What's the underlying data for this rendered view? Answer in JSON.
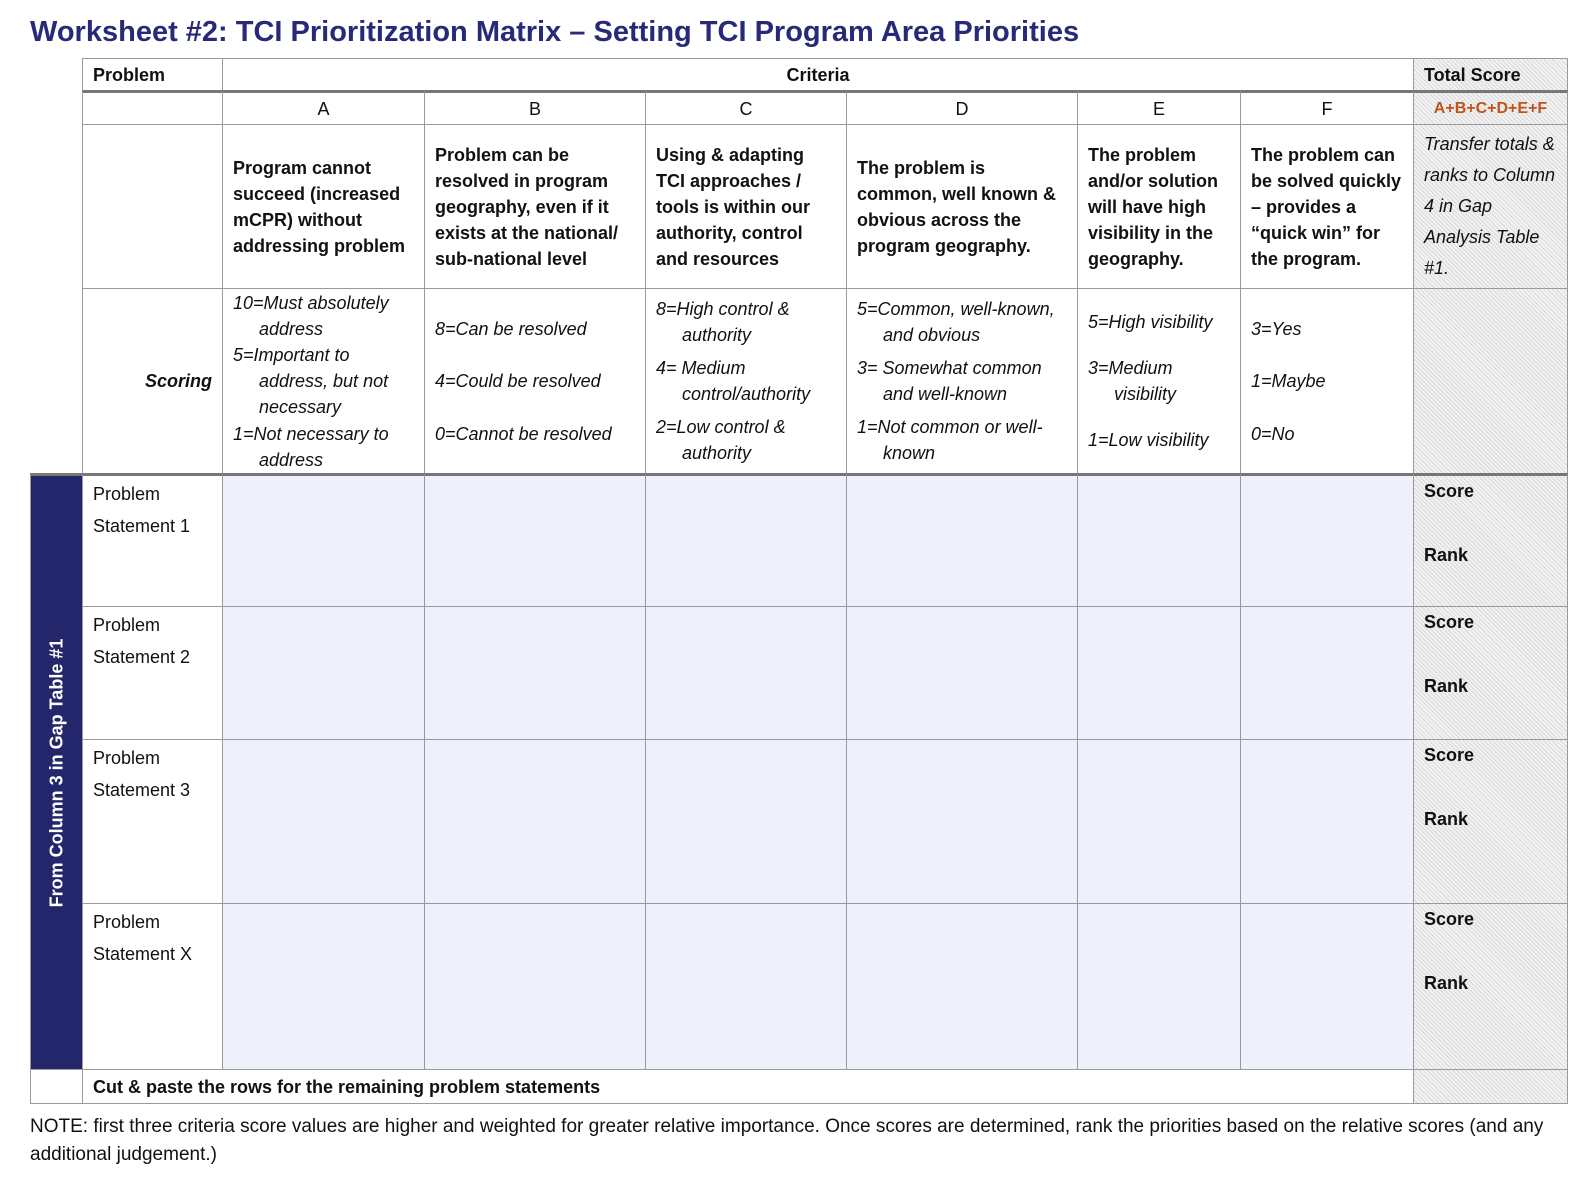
{
  "title": "Worksheet #2: TCI Prioritization Matrix – Setting TCI Program Area Priorities",
  "header": {
    "problem": "Problem",
    "criteria": "Criteria",
    "total_score": "Total Score"
  },
  "total_formula": "A+B+C+D+E+F",
  "total_note": "Transfer totals & ranks to Column 4 in Gap Analysis Table #1.",
  "scoring_label": "Scoring",
  "columns": [
    {
      "letter": "A",
      "description": "Program cannot succeed (increased mCPR) without addressing problem",
      "scoring": [
        "10=Must absolutely address",
        "5=Important to address, but not necessary",
        "1=Not necessary to address"
      ]
    },
    {
      "letter": "B",
      "description": "Problem can be resolved in program geography, even if it exists at the national/ sub-national level",
      "scoring": [
        "8=Can be resolved",
        "4=Could be resolved",
        "0=Cannot be resolved"
      ]
    },
    {
      "letter": "C",
      "description": "Using & adapting TCI approaches / tools is within our authority, control and resources",
      "scoring": [
        "8=High control & authority",
        "4= Medium control/authority",
        "2=Low control & authority"
      ]
    },
    {
      "letter": "D",
      "description": "The problem is common, well known & obvious across the program geography.",
      "scoring": [
        "5=Common, well-known, and obvious",
        "3= Somewhat common and well-known",
        "1=Not common or well-known"
      ]
    },
    {
      "letter": "E",
      "description": "The problem and/or solution will have high visibility in the geography.",
      "scoring": [
        "5=High visibility",
        "3=Medium visibility",
        "1=Low visibility"
      ]
    },
    {
      "letter": "F",
      "description": "The problem can be solved quickly – provides a “quick win” for the program.",
      "scoring": [
        "3=Yes",
        "1=Maybe",
        "0=No"
      ]
    }
  ],
  "side_label": "From Column 3 in Gap Table #1",
  "rows": [
    {
      "label": "Problem Statement 1",
      "score": "Score",
      "rank": "Rank"
    },
    {
      "label": "Problem Statement 2",
      "score": "Score",
      "rank": "Rank"
    },
    {
      "label": "Problem Statement 3",
      "score": "Score",
      "rank": "Rank"
    },
    {
      "label": "Problem Statement X",
      "score": "Score",
      "rank": "Rank"
    }
  ],
  "footer": "Cut & paste the rows for the remaining problem statements",
  "note": "NOTE: first three criteria score values are higher and weighted for greater relative importance.  Once scores are determined, rank the priorities based on the relative scores (and any additional judgement.)"
}
